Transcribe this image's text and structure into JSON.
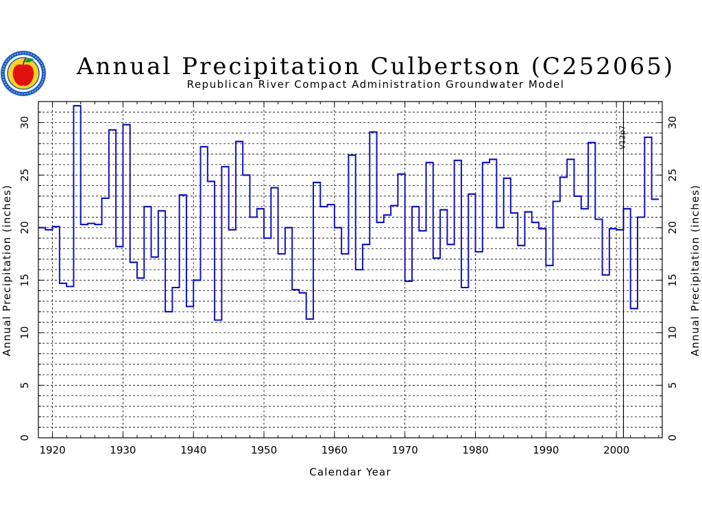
{
  "logo": {
    "icon": "apple-seal-icon",
    "colors": {
      "ring": "#1f5fbf",
      "apple": "#e01010",
      "leaf": "#1a9a1a",
      "field": "#ffd21f"
    }
  },
  "chart_data": {
    "type": "line",
    "style": "step",
    "title": "Annual Precipitation Culbertson (C252065)",
    "subtitle": "Republican River Compact Administration Groundwater Model",
    "xlabel": "Calendar Year",
    "ylabel": "Annual Precipitation (inches)",
    "ylabel_right": "Annual Precipitation (inches)",
    "xlim": [
      1918,
      2006.5
    ],
    "ylim": [
      0,
      32
    ],
    "x_ticks": [
      1920,
      1930,
      1940,
      1950,
      1960,
      1970,
      1980,
      1990,
      2000
    ],
    "y_ticks": [
      0,
      5,
      10,
      15,
      20,
      25,
      30
    ],
    "grid": true,
    "series_color": "#1010c0",
    "marker": {
      "x": 2001,
      "label": "V12p7"
    },
    "series": [
      {
        "x": [
          1918,
          1919,
          1920,
          1921,
          1922,
          1923,
          1924,
          1925,
          1926,
          1927,
          1928,
          1929,
          1930,
          1931,
          1932,
          1933,
          1934,
          1935,
          1936,
          1937,
          1938,
          1939,
          1940,
          1941,
          1942,
          1943,
          1944,
          1945,
          1946,
          1947,
          1948,
          1949,
          1950,
          1951,
          1952,
          1953,
          1954,
          1955,
          1956,
          1957,
          1958,
          1959,
          1960,
          1961,
          1962,
          1963,
          1964,
          1965,
          1966,
          1967,
          1968,
          1969,
          1970,
          1971,
          1972,
          1973,
          1974,
          1975,
          1976,
          1977,
          1978,
          1979,
          1980,
          1981,
          1982,
          1983,
          1984,
          1985,
          1986,
          1987,
          1988,
          1989,
          1990,
          1991,
          1992,
          1993,
          1994,
          1995,
          1996,
          1997,
          1998,
          1999,
          2000,
          2001,
          2002,
          2003,
          2004,
          2005
        ],
        "values": [
          20.0,
          19.8,
          20.1,
          14.7,
          14.4,
          31.6,
          20.3,
          20.4,
          20.3,
          22.8,
          29.3,
          18.2,
          29.8,
          16.7,
          15.2,
          22.0,
          17.2,
          21.6,
          12.0,
          14.3,
          23.1,
          12.5,
          15.0,
          27.7,
          24.4,
          11.2,
          25.8,
          19.8,
          28.2,
          25.0,
          21.0,
          21.8,
          19.0,
          23.8,
          17.5,
          20.0,
          14.1,
          13.8,
          11.3,
          24.3,
          22.0,
          22.2,
          20.0,
          17.5,
          26.9,
          16.0,
          18.4,
          29.1,
          20.5,
          21.2,
          22.1,
          25.1,
          14.9,
          22.0,
          19.7,
          26.2,
          17.1,
          21.7,
          18.4,
          26.4,
          14.3,
          23.2,
          17.7,
          26.2,
          26.5,
          20.0,
          24.7,
          21.4,
          18.3,
          21.5,
          20.5,
          19.9,
          16.4,
          22.5,
          24.8,
          26.5,
          23.0,
          21.8,
          28.1,
          20.8,
          15.5,
          19.9,
          19.8,
          21.8,
          12.3,
          21.0,
          28.6,
          22.7
        ]
      }
    ]
  }
}
